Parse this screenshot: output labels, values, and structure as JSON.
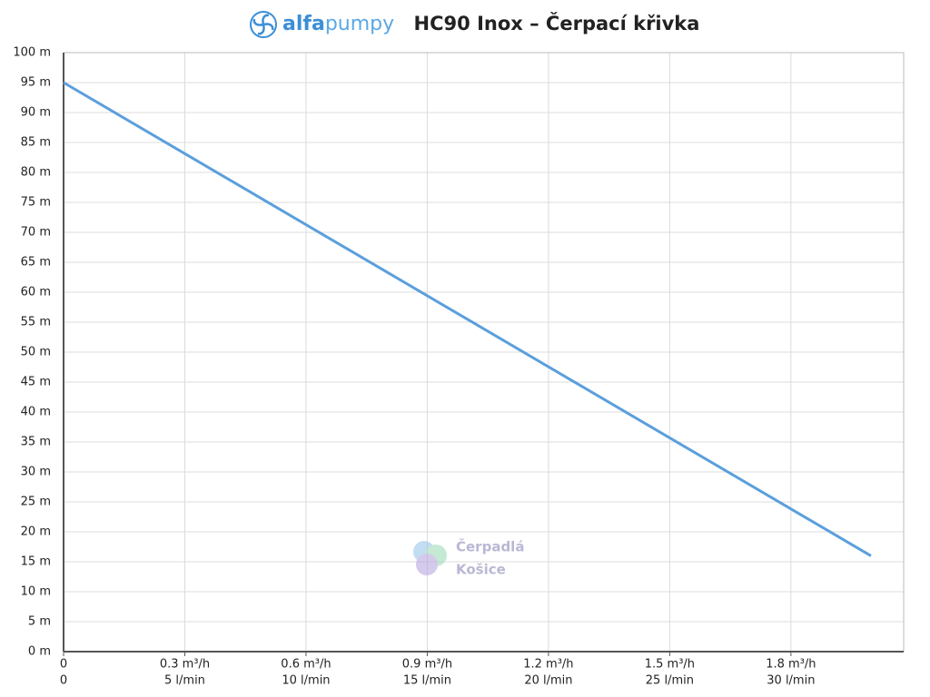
{
  "chart_data": {
    "type": "line",
    "logo_parts": [
      "alfa",
      "pumpy"
    ],
    "title": "HC90 Inox – Čerpací křivka",
    "watermark": [
      "Čerpadlá",
      "Košice"
    ],
    "x": [
      0,
      33.3
    ],
    "series": [
      {
        "color": "#5b9fdc",
        "values": [
          95,
          16
        ]
      }
    ],
    "xlim": [
      0,
      34.65
    ],
    "ylim": [
      0,
      100
    ],
    "xticks": [
      {
        "value": 0,
        "label": "0"
      },
      {
        "value": 5,
        "label": "5 l/min"
      },
      {
        "value": 10,
        "label": "10 l/min"
      },
      {
        "value": 15,
        "label": "15 l/min"
      },
      {
        "value": 20,
        "label": "20 l/min"
      },
      {
        "value": 25,
        "label": "25 l/min"
      },
      {
        "value": 30,
        "label": "30 l/min"
      }
    ],
    "xticks_flow": [
      {
        "value": 0,
        "label": "0"
      },
      {
        "value": 5,
        "label": "0.3 m³/h"
      },
      {
        "value": 10,
        "label": "0.6 m³/h"
      },
      {
        "value": 15,
        "label": "0.9 m³/h"
      },
      {
        "value": 20,
        "label": "1.2 m³/h"
      },
      {
        "value": 25,
        "label": "1.5 m³/h"
      },
      {
        "value": 30,
        "label": "1.8 m³/h"
      }
    ],
    "yticks": [
      {
        "value": 0,
        "label": "0 m"
      },
      {
        "value": 5,
        "label": "5 m"
      },
      {
        "value": 10,
        "label": "10 m"
      },
      {
        "value": 15,
        "label": "15 m"
      },
      {
        "value": 20,
        "label": "20 m"
      },
      {
        "value": 25,
        "label": "25 m"
      },
      {
        "value": 30,
        "label": "30 m"
      },
      {
        "value": 35,
        "label": "35 m"
      },
      {
        "value": 40,
        "label": "40 m"
      },
      {
        "value": 45,
        "label": "45 m"
      },
      {
        "value": 50,
        "label": "50 m"
      },
      {
        "value": 55,
        "label": "55 m"
      },
      {
        "value": 60,
        "label": "60 m"
      },
      {
        "value": 65,
        "label": "65 m"
      },
      {
        "value": 70,
        "label": "70 m"
      },
      {
        "value": 75,
        "label": "75 m"
      },
      {
        "value": 80,
        "label": "80 m"
      },
      {
        "value": 85,
        "label": "85 m"
      },
      {
        "value": 90,
        "label": "90 m"
      },
      {
        "value": 95,
        "label": "95 m"
      },
      {
        "value": 100,
        "label": "100 m"
      }
    ],
    "grid": true
  }
}
